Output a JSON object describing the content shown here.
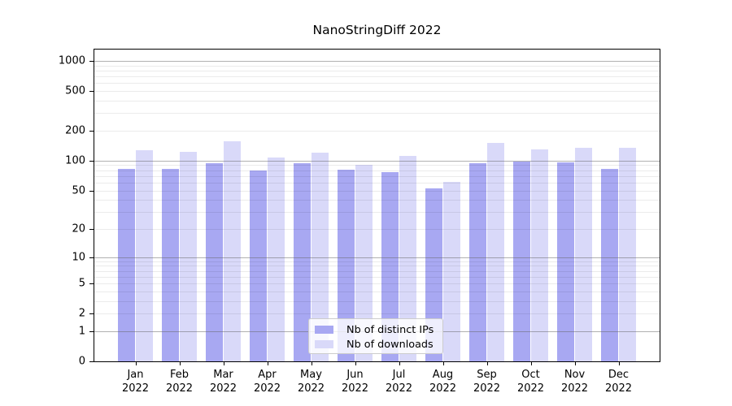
{
  "chart_data": {
    "type": "bar",
    "title": "NanoStringDiff 2022",
    "scale": "log1p",
    "categories": [
      "Jan",
      "Feb",
      "Mar",
      "Apr",
      "May",
      "Jun",
      "Jul",
      "Aug",
      "Sep",
      "Oct",
      "Nov",
      "Dec"
    ],
    "category_year": "2022",
    "series": [
      {
        "name": "Nb of distinct IPs",
        "color": "#a8a8f2",
        "values": [
          83,
          83,
          95,
          80,
          95,
          81,
          76,
          52,
          95,
          98,
          97,
          83
        ]
      },
      {
        "name": "Nb of downloads",
        "color": "#d9d9f9",
        "values": [
          128,
          123,
          156,
          107,
          120,
          90,
          111,
          61,
          150,
          130,
          134,
          134
        ]
      }
    ],
    "yticks": [
      0,
      1,
      2,
      5,
      10,
      20,
      50,
      100,
      200,
      500,
      1000
    ],
    "ylim": [
      0,
      1300
    ],
    "xlabel": "",
    "ylabel": "",
    "grid": true,
    "gridlines_major_at": [
      1,
      10,
      100,
      1000
    ],
    "legend_position": "bottom-center",
    "legend_entries": [
      "Nb of distinct IPs",
      "Nb of downloads"
    ]
  },
  "colors": {
    "background": "#ffffff",
    "plot_border": "#000000",
    "bar_distinct_ips": "#a8a8f2",
    "bar_downloads": "#d9d9f9",
    "gridline_major": "#b2b2b2",
    "gridline_minor": "#ececec",
    "legend_border": "#cccccc",
    "text": "#000000"
  }
}
